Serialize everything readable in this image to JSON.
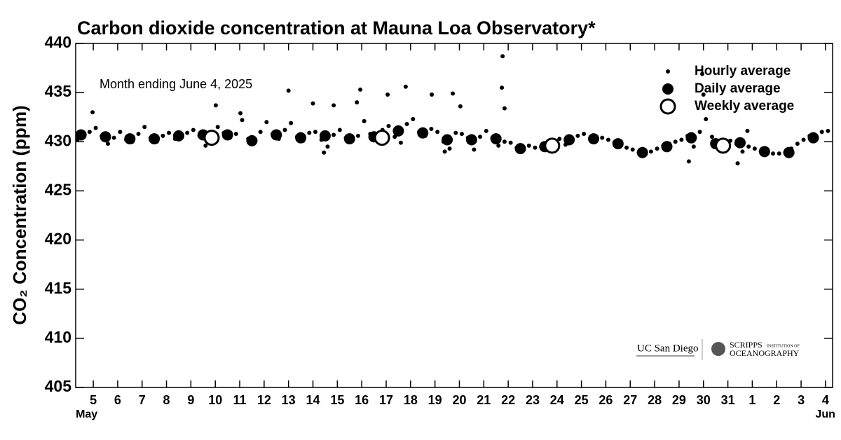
{
  "chart_data": {
    "type": "scatter",
    "title": "Carbon dioxide concentration at Mauna Loa Observatory*",
    "annotation": "Month ending June 4, 2025",
    "y_label": "CO₂ Concentration (ppm)",
    "month_labels": [
      "May",
      "Jun"
    ],
    "logo_texts": [
      "UC San Diego",
      "SCRIPPS",
      "INSTITUTION OF",
      "OCEANOGRAPHY"
    ],
    "legend": "upper right",
    "xlim": [
      4.28,
      35.29
    ],
    "ylim": [
      405,
      440
    ],
    "yticks": [
      405,
      410,
      415,
      420,
      425,
      430,
      435,
      440
    ],
    "xticks": [
      5,
      6,
      7,
      8,
      9,
      10,
      11,
      12,
      13,
      14,
      15,
      16,
      17,
      18,
      19,
      20,
      21,
      22,
      23,
      24,
      25,
      26,
      27,
      28,
      29,
      30,
      31,
      {
        "value": 32,
        "label": "1"
      },
      {
        "value": 33,
        "label": "2"
      },
      {
        "value": 34,
        "label": "3"
      },
      {
        "value": 35,
        "label": "4"
      }
    ],
    "series": [
      {
        "name": "Hourly average",
        "color": "#000000",
        "marker": "small",
        "x": [
          4.35,
          4.6,
          4.85,
          5.1,
          5.35,
          5.6,
          5.85,
          6.1,
          6.35,
          6.6,
          6.85,
          7.1,
          7.35,
          7.6,
          7.85,
          8.1,
          8.35,
          8.6,
          8.85,
          9.1,
          9.35,
          9.6,
          9.85,
          10.1,
          10.35,
          10.6,
          10.85,
          11.1,
          11.35,
          11.6,
          11.85,
          12.1,
          12.35,
          12.6,
          12.85,
          13.1,
          13.35,
          13.6,
          13.85,
          14.1,
          14.35,
          14.6,
          14.85,
          15.1,
          15.35,
          15.6,
          15.85,
          16.1,
          16.35,
          16.6,
          16.85,
          17.1,
          17.35,
          17.6,
          17.85,
          18.1,
          18.35,
          18.6,
          18.85,
          19.1,
          19.35,
          19.6,
          19.85,
          20.1,
          20.35,
          20.6,
          20.85,
          21.1,
          21.35,
          21.6,
          21.85,
          22.1,
          22.35,
          22.6,
          22.85,
          23.1,
          23.35,
          23.6,
          23.85,
          24.1,
          24.35,
          24.6,
          24.85,
          25.1,
          25.35,
          25.6,
          25.85,
          26.1,
          26.35,
          26.6,
          26.85,
          27.1,
          27.35,
          27.6,
          27.85,
          28.1,
          28.35,
          28.6,
          28.85,
          29.1,
          29.35,
          29.6,
          29.85,
          30.1,
          30.35,
          30.6,
          30.85,
          31.1,
          31.35,
          31.6,
          31.85,
          32.1,
          32.35,
          32.6,
          32.85,
          33.1,
          33.35,
          33.6,
          33.85,
          34.1,
          34.35,
          34.6,
          34.85,
          35.1,
          4.97,
          10.02,
          11.03,
          13.0,
          14.0,
          14.85,
          15.94,
          15.8,
          17.06,
          17.8,
          18.87,
          19.73,
          20.04,
          21.77,
          21.74,
          21.85,
          29.95,
          30.0,
          29.4,
          31.4,
          31.8,
          14.45,
          19.4
        ],
        "values": [
          430.2,
          430.9,
          431.0,
          431.4,
          430.6,
          429.8,
          430.4,
          431.0,
          430.2,
          430.0,
          430.8,
          431.5,
          430.4,
          430.0,
          430.6,
          430.9,
          430.3,
          430.7,
          430.9,
          431.2,
          430.6,
          429.6,
          430.2,
          431.5,
          430.9,
          430.4,
          430.8,
          432.2,
          430.3,
          429.9,
          431.0,
          432.0,
          430.8,
          430.3,
          431.2,
          431.9,
          430.5,
          430.1,
          430.9,
          431.0,
          430.2,
          429.5,
          430.7,
          431.2,
          430.4,
          430.3,
          430.6,
          432.1,
          430.8,
          430.2,
          431.2,
          431.6,
          430.5,
          429.9,
          431.8,
          432.3,
          431.0,
          430.6,
          431.3,
          431.0,
          430.0,
          429.3,
          430.9,
          430.8,
          430.4,
          429.2,
          430.5,
          431.1,
          430.4,
          429.6,
          430.0,
          429.9,
          429.4,
          429.2,
          429.6,
          429.4,
          429.5,
          429.7,
          429.9,
          430.3,
          429.7,
          430.0,
          430.6,
          430.8,
          430.3,
          430.1,
          430.4,
          430.2,
          429.9,
          429.6,
          429.4,
          429.2,
          428.9,
          428.8,
          429.0,
          429.3,
          429.6,
          429.8,
          430.0,
          430.2,
          430.6,
          429.5,
          431.0,
          432.3,
          430.5,
          429.6,
          429.8,
          430.1,
          429.8,
          429.0,
          429.5,
          429.3,
          429.0,
          428.9,
          428.8,
          428.8,
          428.9,
          429.3,
          429.8,
          430.2,
          430.6,
          430.4,
          431.0,
          431.1,
          433.0,
          433.7,
          432.9,
          435.2,
          433.9,
          433.7,
          435.3,
          434.0,
          434.8,
          435.6,
          434.8,
          434.9,
          433.6,
          438.7,
          435.5,
          433.4,
          436.9,
          434.8,
          428.0,
          427.8,
          431.1,
          428.9,
          429.0
        ]
      },
      {
        "name": "Daily average",
        "color": "#000000",
        "marker": "dot",
        "x": [
          4.5,
          5.5,
          6.5,
          7.5,
          8.5,
          9.5,
          10.5,
          11.5,
          12.5,
          13.5,
          14.5,
          15.5,
          16.5,
          17.5,
          18.5,
          19.5,
          20.5,
          21.5,
          22.5,
          23.5,
          24.5,
          25.5,
          26.5,
          27.5,
          28.5,
          29.5,
          30.5,
          31.5,
          32.5,
          33.5,
          34.5
        ],
        "values": [
          430.7,
          430.5,
          430.3,
          430.3,
          430.6,
          430.7,
          430.7,
          430.1,
          430.7,
          430.4,
          430.6,
          430.3,
          430.5,
          431.1,
          430.9,
          430.2,
          430.2,
          430.3,
          429.3,
          429.5,
          430.2,
          430.3,
          429.8,
          428.9,
          429.5,
          430.4,
          429.8,
          429.9,
          429.0,
          428.9,
          430.4
        ]
      },
      {
        "name": "Weekly average",
        "color": "#000000",
        "marker": "open",
        "x": [
          9.85,
          16.83,
          23.8,
          30.8
        ],
        "values": [
          430.4,
          430.4,
          429.6,
          429.6
        ]
      }
    ]
  }
}
